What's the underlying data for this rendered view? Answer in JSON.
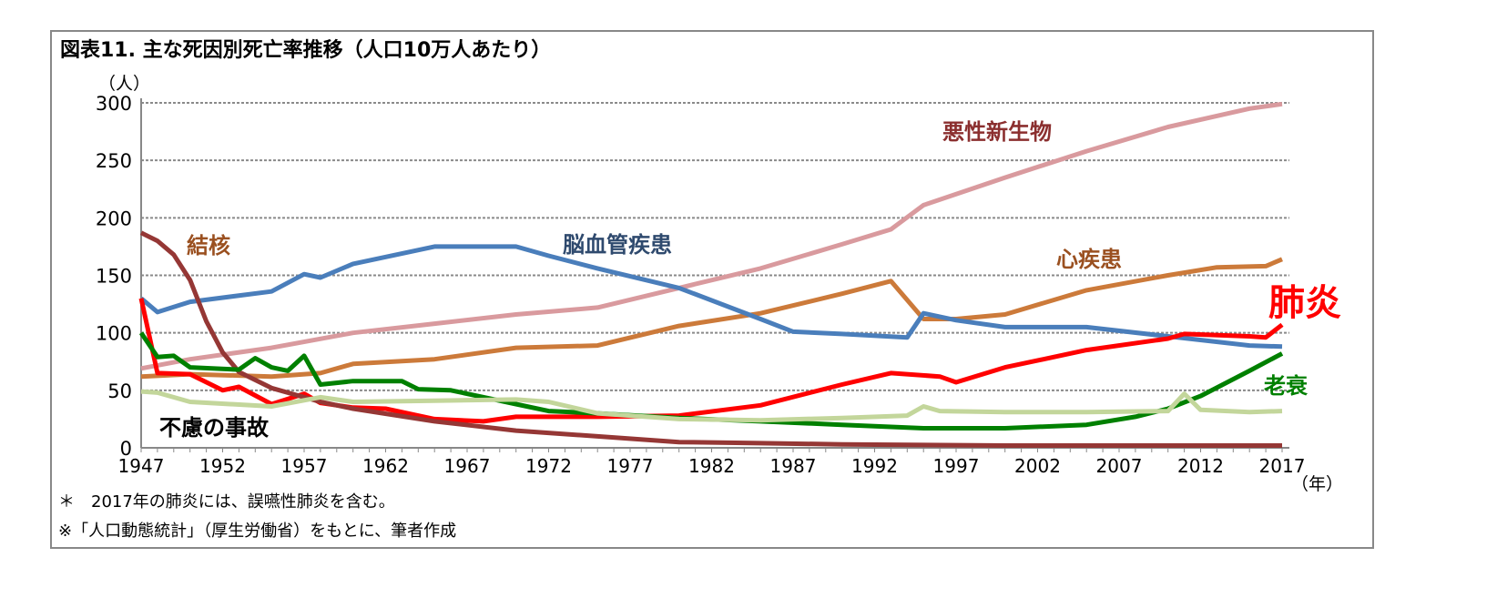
{
  "chart_data": {
    "type": "line",
    "title": "図表11. 主な死因別死亡率推移（人口10万人あたり）",
    "ylabel": "（人）",
    "xlabel": "（年）",
    "ylim": [
      0,
      300
    ],
    "xlim": [
      1947,
      2017
    ],
    "yticks": [
      "0",
      "50",
      "100",
      "150",
      "200",
      "250",
      "300"
    ],
    "xticks": [
      "1947",
      "1952",
      "1957",
      "1962",
      "1967",
      "1972",
      "1977",
      "1982",
      "1987",
      "1992",
      "1997",
      "2002",
      "2007",
      "2012",
      "2017"
    ],
    "grid": true,
    "series": [
      {
        "name": "悪性新生物",
        "color": "#d99a9e",
        "label_color": "#8b2f2f",
        "x": [
          1947,
          1950,
          1955,
          1960,
          1965,
          1970,
          1975,
          1980,
          1985,
          1990,
          1993,
          1995,
          2000,
          2005,
          2010,
          2015,
          2017
        ],
        "y": [
          69,
          77,
          87,
          100,
          108,
          116,
          122,
          139,
          156,
          177,
          190,
          211,
          235,
          258,
          279,
          295,
          299
        ]
      },
      {
        "name": "心疾患",
        "color": "#cc7a3a",
        "label_color": "#9a5020",
        "x": [
          1947,
          1950,
          1955,
          1958,
          1960,
          1965,
          1970,
          1975,
          1980,
          1985,
          1990,
          1993,
          1995,
          1997,
          2000,
          2005,
          2010,
          2013,
          2016,
          2017
        ],
        "y": [
          62,
          64,
          62,
          65,
          73,
          77,
          87,
          89,
          106,
          117,
          134,
          145,
          112,
          112,
          116,
          137,
          150,
          157,
          158,
          164
        ]
      },
      {
        "name": "脳血管疾患",
        "color": "#4a7ebb",
        "label_color": "#2f4a6e",
        "x": [
          1947,
          1948,
          1950,
          1955,
          1957,
          1958,
          1960,
          1965,
          1970,
          1972,
          1975,
          1980,
          1985,
          1987,
          1990,
          1994,
          1995,
          1997,
          2000,
          2005,
          2010,
          2015,
          2017
        ],
        "y": [
          130,
          118,
          127,
          136,
          151,
          148,
          160,
          175,
          175,
          167,
          156,
          139,
          112,
          101,
          99,
          96,
          117,
          111,
          105,
          105,
          97,
          89,
          88
        ]
      },
      {
        "name": "肺炎",
        "color": "#ff0000",
        "label_color": "#ff0000",
        "x": [
          1947,
          1948,
          1950,
          1952,
          1953,
          1955,
          1957,
          1958,
          1960,
          1962,
          1965,
          1968,
          1970,
          1975,
          1980,
          1985,
          1990,
          1993,
          1996,
          1997,
          2000,
          2005,
          2010,
          2011,
          2015,
          2016,
          2017
        ],
        "y": [
          130,
          65,
          64,
          50,
          53,
          38,
          47,
          39,
          35,
          34,
          25,
          23,
          27,
          27,
          28,
          37,
          55,
          65,
          62,
          57,
          70,
          85,
          95,
          99,
          97,
          96,
          107
        ]
      },
      {
        "name": "結核",
        "color": "#953735",
        "label_color": "#9a5020",
        "x": [
          1947,
          1948,
          1949,
          1950,
          1951,
          1952,
          1953,
          1955,
          1958,
          1960,
          1965,
          1970,
          1975,
          1980,
          1985,
          1990,
          2000,
          2017
        ],
        "y": [
          187,
          180,
          168,
          146,
          110,
          83,
          66,
          52,
          40,
          34,
          23,
          15,
          10,
          5,
          4,
          3,
          2,
          2
        ]
      },
      {
        "name": "老衰",
        "color": "#008000",
        "label_color": "#008000",
        "x": [
          1947,
          1948,
          1949,
          1950,
          1953,
          1954,
          1955,
          1956,
          1957,
          1958,
          1960,
          1963,
          1964,
          1966,
          1970,
          1972,
          1975,
          1980,
          1985,
          1990,
          1995,
          2000,
          2005,
          2008,
          2010,
          2012,
          2015,
          2017
        ],
        "y": [
          100,
          79,
          80,
          70,
          68,
          78,
          70,
          67,
          80,
          55,
          58,
          58,
          51,
          50,
          38,
          32,
          30,
          26,
          23,
          20,
          17,
          17,
          20,
          27,
          34,
          45,
          67,
          82
        ]
      },
      {
        "name": "不慮の事故",
        "color": "#c3d69b",
        "label_color": "#000000",
        "x": [
          1947,
          1948,
          1950,
          1955,
          1958,
          1960,
          1965,
          1970,
          1972,
          1975,
          1980,
          1985,
          1990,
          1994,
          1995,
          1996,
          2000,
          2005,
          2010,
          2011,
          2012,
          2015,
          2017
        ],
        "y": [
          49,
          48,
          40,
          36,
          44,
          40,
          41,
          42,
          40,
          30,
          25,
          24,
          26,
          28,
          36,
          32,
          31,
          31,
          32,
          47,
          33,
          31,
          32
        ]
      }
    ]
  },
  "notes": [
    "＊　2017年の肺炎には、誤嚥性肺炎を含む。",
    "※「人口動態統計」（厚生労働省）をもとに、筆者作成"
  ]
}
